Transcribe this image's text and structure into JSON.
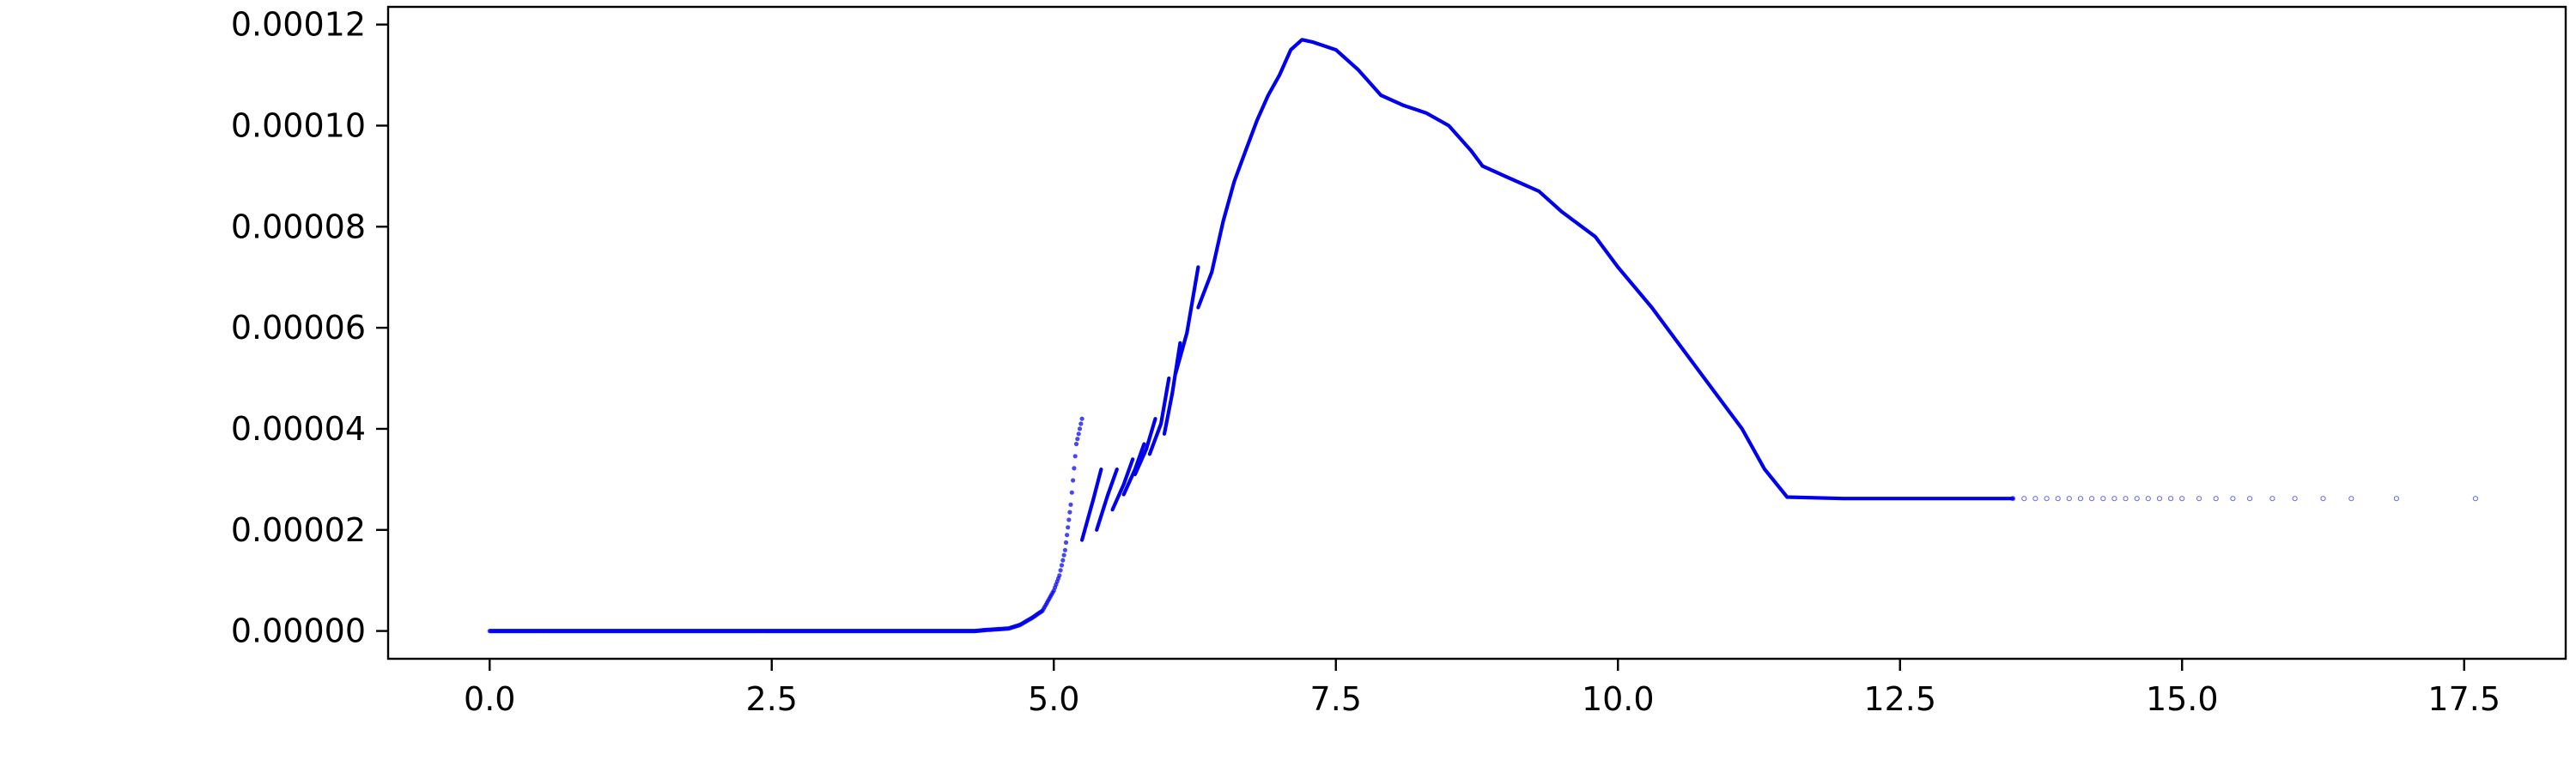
{
  "chart_data": {
    "type": "scatter",
    "title": "",
    "xlabel": "",
    "ylabel": "",
    "xlim": [
      -0.9,
      18.4
    ],
    "ylim": [
      -5.5e-06,
      0.0001235
    ],
    "grid": false,
    "x_ticks": [
      {
        "value": 0.0,
        "label": "0.0"
      },
      {
        "value": 2.5,
        "label": "2.5"
      },
      {
        "value": 5.0,
        "label": "5.0"
      },
      {
        "value": 7.5,
        "label": "7.5"
      },
      {
        "value": 10.0,
        "label": "10.0"
      },
      {
        "value": 12.5,
        "label": "12.5"
      },
      {
        "value": 15.0,
        "label": "15.0"
      },
      {
        "value": 17.5,
        "label": "17.5"
      }
    ],
    "y_ticks": [
      {
        "value": 0.0,
        "label": "0.00000"
      },
      {
        "value": 2e-05,
        "label": "0.00002"
      },
      {
        "value": 4e-05,
        "label": "0.00004"
      },
      {
        "value": 6e-05,
        "label": "0.00006"
      },
      {
        "value": 8e-05,
        "label": "0.00008"
      },
      {
        "value": 0.0001,
        "label": "0.00010"
      },
      {
        "value": 0.00012,
        "label": "0.00012"
      }
    ],
    "series": [
      {
        "color": "#0000ee",
        "style": "dense-points",
        "points": [
          [
            0.0,
            0.0
          ],
          [
            1.0,
            0.0
          ],
          [
            2.0,
            0.0
          ],
          [
            3.0,
            0.0
          ],
          [
            4.0,
            0.0
          ],
          [
            4.3,
            0.0
          ],
          [
            4.4,
            2e-07
          ],
          [
            4.6,
            5e-07
          ],
          [
            4.7,
            1.2e-06
          ],
          [
            4.8,
            2.5e-06
          ],
          [
            4.9,
            4e-06
          ],
          [
            5.0,
            8e-06
          ],
          [
            5.05,
            1.1e-05
          ],
          [
            5.1,
            1.6e-05
          ],
          [
            5.15,
            2.5e-05
          ],
          [
            5.2,
            3.7e-05
          ],
          [
            5.25,
            4.2e-05
          ]
        ]
      },
      {
        "color": "#0000ee",
        "style": "line",
        "points": [
          [
            5.25,
            1.8e-05
          ],
          [
            5.35,
            2.6e-05
          ],
          [
            5.42,
            3.2e-05
          ]
        ]
      },
      {
        "color": "#0000ee",
        "style": "line",
        "points": [
          [
            5.38,
            2e-05
          ],
          [
            5.48,
            2.7e-05
          ],
          [
            5.56,
            3.2e-05
          ]
        ]
      },
      {
        "color": "#0000ee",
        "style": "line",
        "points": [
          [
            5.52,
            2.4e-05
          ],
          [
            5.62,
            2.9e-05
          ],
          [
            5.7,
            3.4e-05
          ]
        ]
      },
      {
        "color": "#0000ee",
        "style": "line",
        "points": [
          [
            5.62,
            2.7e-05
          ],
          [
            5.72,
            3.2e-05
          ],
          [
            5.8,
            3.7e-05
          ]
        ]
      },
      {
        "color": "#0000ee",
        "style": "line",
        "points": [
          [
            5.72,
            3.1e-05
          ],
          [
            5.82,
            3.6e-05
          ],
          [
            5.9,
            4.2e-05
          ]
        ]
      },
      {
        "color": "#0000ee",
        "style": "line",
        "points": [
          [
            5.85,
            3.5e-05
          ],
          [
            5.95,
            4.1e-05
          ],
          [
            6.02,
            5e-05
          ]
        ]
      },
      {
        "color": "#0000ee",
        "style": "line",
        "points": [
          [
            5.98,
            3.9e-05
          ],
          [
            6.05,
            4.7e-05
          ],
          [
            6.12,
            5.7e-05
          ]
        ]
      },
      {
        "color": "#0000ee",
        "style": "line",
        "points": [
          [
            6.08,
            5.1e-05
          ],
          [
            6.18,
            5.9e-05
          ],
          [
            6.28,
            7.2e-05
          ]
        ]
      },
      {
        "color": "#0000ee",
        "style": "line",
        "points": [
          [
            6.28,
            6.4e-05
          ],
          [
            6.4,
            7.1e-05
          ],
          [
            6.5,
            8.1e-05
          ],
          [
            6.6,
            8.9e-05
          ],
          [
            6.7,
            9.5e-05
          ],
          [
            6.8,
            0.000101
          ],
          [
            6.9,
            0.000106
          ],
          [
            7.0,
            0.00011
          ],
          [
            7.1,
            0.000115
          ],
          [
            7.2,
            0.000117
          ],
          [
            7.3,
            0.0001165
          ],
          [
            7.5,
            0.000115
          ],
          [
            7.7,
            0.000111
          ],
          [
            7.9,
            0.000106
          ],
          [
            8.1,
            0.000104
          ],
          [
            8.3,
            0.0001025
          ],
          [
            8.5,
            0.0001
          ],
          [
            8.7,
            9.5e-05
          ],
          [
            8.8,
            9.2e-05
          ],
          [
            9.0,
            9e-05
          ],
          [
            9.3,
            8.7e-05
          ],
          [
            9.5,
            8.3e-05
          ],
          [
            9.8,
            7.8e-05
          ],
          [
            10.0,
            7.2e-05
          ],
          [
            10.3,
            6.4e-05
          ],
          [
            10.5,
            5.8e-05
          ],
          [
            10.7,
            5.2e-05
          ],
          [
            10.9,
            4.6e-05
          ],
          [
            11.1,
            4e-05
          ],
          [
            11.3,
            3.2e-05
          ],
          [
            11.5,
            2.65e-05
          ],
          [
            12.0,
            2.62e-05
          ],
          [
            12.5,
            2.62e-05
          ],
          [
            13.0,
            2.62e-05
          ],
          [
            13.5,
            2.62e-05
          ]
        ]
      },
      {
        "color": "#0000ee",
        "style": "sparse-points",
        "points": [
          [
            13.5,
            2.62e-05
          ],
          [
            13.6,
            2.62e-05
          ],
          [
            13.7,
            2.62e-05
          ],
          [
            13.8,
            2.62e-05
          ],
          [
            13.9,
            2.62e-05
          ],
          [
            14.0,
            2.62e-05
          ],
          [
            14.1,
            2.62e-05
          ],
          [
            14.2,
            2.62e-05
          ],
          [
            14.3,
            2.62e-05
          ],
          [
            14.4,
            2.62e-05
          ],
          [
            14.5,
            2.62e-05
          ],
          [
            14.6,
            2.62e-05
          ],
          [
            14.7,
            2.62e-05
          ],
          [
            14.8,
            2.62e-05
          ],
          [
            14.9,
            2.62e-05
          ],
          [
            15.0,
            2.62e-05
          ],
          [
            15.15,
            2.62e-05
          ],
          [
            15.3,
            2.62e-05
          ],
          [
            15.45,
            2.62e-05
          ],
          [
            15.6,
            2.62e-05
          ],
          [
            15.8,
            2.62e-05
          ],
          [
            16.0,
            2.62e-05
          ],
          [
            16.25,
            2.62e-05
          ],
          [
            16.5,
            2.62e-05
          ],
          [
            16.9,
            2.62e-05
          ],
          [
            17.6,
            2.62e-05
          ]
        ]
      }
    ]
  }
}
